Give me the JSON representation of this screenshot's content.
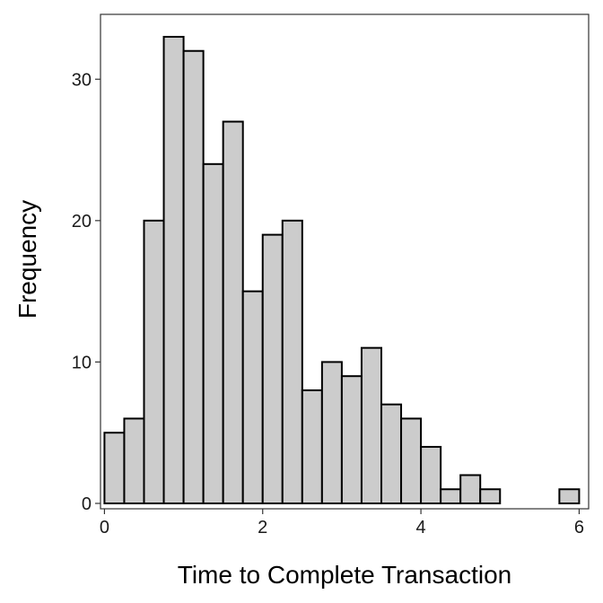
{
  "chart_data": {
    "type": "bar",
    "title": "",
    "xlabel": "Time to Complete Transaction",
    "ylabel": "Frequency",
    "xlim": [
      -0.05,
      6.12
    ],
    "ylim": [
      0,
      33
    ],
    "grid": false,
    "bin_width": 0.25,
    "bins": [
      {
        "x0": 0.0,
        "x1": 0.25,
        "count": 5
      },
      {
        "x0": 0.25,
        "x1": 0.5,
        "count": 6
      },
      {
        "x0": 0.5,
        "x1": 0.75,
        "count": 20
      },
      {
        "x0": 0.75,
        "x1": 1.0,
        "count": 33
      },
      {
        "x0": 1.0,
        "x1": 1.25,
        "count": 32
      },
      {
        "x0": 1.25,
        "x1": 1.5,
        "count": 24
      },
      {
        "x0": 1.5,
        "x1": 1.75,
        "count": 27
      },
      {
        "x0": 1.75,
        "x1": 2.0,
        "count": 15
      },
      {
        "x0": 2.0,
        "x1": 2.25,
        "count": 19
      },
      {
        "x0": 2.25,
        "x1": 2.5,
        "count": 20
      },
      {
        "x0": 2.5,
        "x1": 2.75,
        "count": 8
      },
      {
        "x0": 2.75,
        "x1": 3.0,
        "count": 10
      },
      {
        "x0": 3.0,
        "x1": 3.25,
        "count": 9
      },
      {
        "x0": 3.25,
        "x1": 3.5,
        "count": 11
      },
      {
        "x0": 3.5,
        "x1": 3.75,
        "count": 7
      },
      {
        "x0": 3.75,
        "x1": 4.0,
        "count": 6
      },
      {
        "x0": 4.0,
        "x1": 4.25,
        "count": 4
      },
      {
        "x0": 4.25,
        "x1": 4.5,
        "count": 1
      },
      {
        "x0": 4.5,
        "x1": 4.75,
        "count": 2
      },
      {
        "x0": 4.75,
        "x1": 5.0,
        "count": 1
      },
      {
        "x0": 5.0,
        "x1": 5.25,
        "count": 0
      },
      {
        "x0": 5.25,
        "x1": 5.5,
        "count": 0
      },
      {
        "x0": 5.5,
        "x1": 5.75,
        "count": 0
      },
      {
        "x0": 5.75,
        "x1": 6.0,
        "count": 1
      }
    ],
    "x_ticks": [
      0,
      2,
      4,
      6
    ],
    "x_tick_labels": [
      "0",
      "2",
      "4",
      "6"
    ],
    "y_ticks": [
      0,
      10,
      20,
      30
    ],
    "y_tick_labels": [
      "0",
      "10",
      "20",
      "30"
    ],
    "colors": {
      "bar_fill": "#cccccc",
      "bar_stroke": "#000000",
      "panel_border": "#333333",
      "background": "#ffffff"
    }
  }
}
